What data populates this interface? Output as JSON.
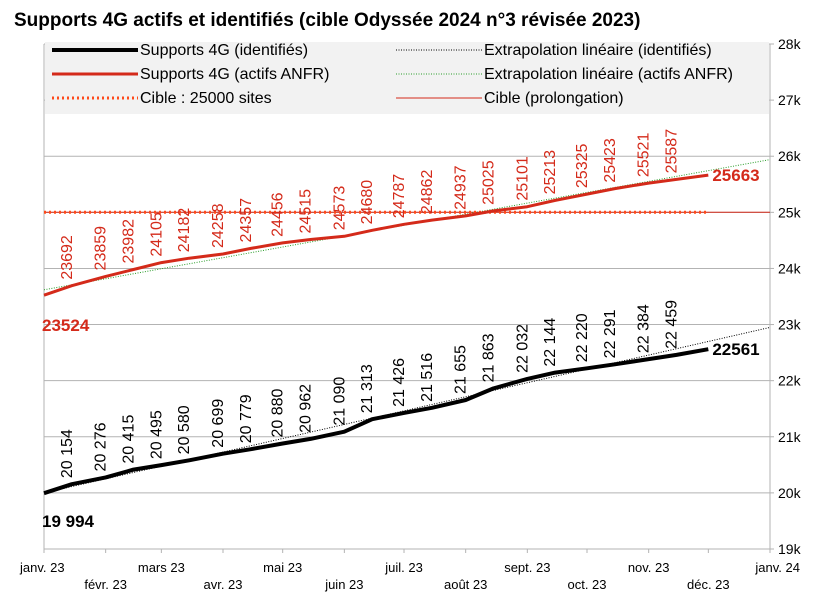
{
  "chart_data": {
    "type": "line",
    "title": "Supports 4G actifs et identifiés (cible Odyssée 2024 n°3 révisée 2023)",
    "ylim": [
      19000,
      28000
    ],
    "y_ticks": [
      {
        "value": 19000,
        "label": "19k"
      },
      {
        "value": 20000,
        "label": "20k"
      },
      {
        "value": 21000,
        "label": "21k"
      },
      {
        "value": 22000,
        "label": "22k"
      },
      {
        "value": 23000,
        "label": "23k"
      },
      {
        "value": 24000,
        "label": "24k"
      },
      {
        "value": 25000,
        "label": "25k"
      },
      {
        "value": 26000,
        "label": "26k"
      },
      {
        "value": 27000,
        "label": "27k"
      },
      {
        "value": 28000,
        "label": "28k"
      }
    ],
    "y_axis_position": "right",
    "x_range": [
      "2023-01-01",
      "2024-01-01"
    ],
    "x_ticks": [
      {
        "date": "2023-01-01",
        "label": "janv. 23"
      },
      {
        "date": "2023-02-01",
        "label": "févr. 23"
      },
      {
        "date": "2023-03-01",
        "label": "mars 23"
      },
      {
        "date": "2023-04-01",
        "label": "avr. 23"
      },
      {
        "date": "2023-05-01",
        "label": "mai 23"
      },
      {
        "date": "2023-06-01",
        "label": "juin 23"
      },
      {
        "date": "2023-07-01",
        "label": "juil. 23"
      },
      {
        "date": "2023-08-01",
        "label": "août 23"
      },
      {
        "date": "2023-09-01",
        "label": "sept. 23"
      },
      {
        "date": "2023-10-01",
        "label": "oct. 23"
      },
      {
        "date": "2023-11-01",
        "label": "nov. 23"
      },
      {
        "date": "2023-12-01",
        "label": "déc. 23"
      },
      {
        "date": "2024-01-01",
        "label": "janv. 24"
      }
    ],
    "grid": {
      "horizontal": true,
      "vertical": false
    },
    "legend_position": "top",
    "series": [
      {
        "name": "Supports 4G (identifiés)",
        "color": "#000000",
        "style": "solid-thick",
        "points": [
          {
            "date": "2023-01-01",
            "value": 19994,
            "label": "19 994"
          },
          {
            "date": "2023-01-15",
            "value": 20154,
            "label": "20 154"
          },
          {
            "date": "2023-02-01",
            "value": 20276,
            "label": "20 276"
          },
          {
            "date": "2023-02-15",
            "value": 20415,
            "label": "20 415"
          },
          {
            "date": "2023-03-01",
            "value": 20495,
            "label": "20 495"
          },
          {
            "date": "2023-03-15",
            "value": 20580,
            "label": "20 580"
          },
          {
            "date": "2023-04-01",
            "value": 20699,
            "label": "20 699"
          },
          {
            "date": "2023-04-15",
            "value": 20779,
            "label": "20 779"
          },
          {
            "date": "2023-05-01",
            "value": 20880,
            "label": "20 880"
          },
          {
            "date": "2023-05-15",
            "value": 20962,
            "label": "20 962"
          },
          {
            "date": "2023-06-01",
            "value": 21090,
            "label": "21 090"
          },
          {
            "date": "2023-06-15",
            "value": 21313,
            "label": "21 313"
          },
          {
            "date": "2023-07-01",
            "value": 21426,
            "label": "21 426"
          },
          {
            "date": "2023-07-15",
            "value": 21516,
            "label": "21 516"
          },
          {
            "date": "2023-08-01",
            "value": 21655,
            "label": "21 655"
          },
          {
            "date": "2023-08-15",
            "value": 21863,
            "label": "21 863"
          },
          {
            "date": "2023-09-01",
            "value": 22032,
            "label": "22 032"
          },
          {
            "date": "2023-09-15",
            "value": 22144,
            "label": "22 144"
          },
          {
            "date": "2023-10-01",
            "value": 22220,
            "label": "22 220"
          },
          {
            "date": "2023-10-15",
            "value": 22291,
            "label": "22 291"
          },
          {
            "date": "2023-11-01",
            "value": 22384,
            "label": "22 384"
          },
          {
            "date": "2023-11-15",
            "value": 22459,
            "label": "22 459"
          },
          {
            "date": "2023-12-01",
            "value": 22561,
            "label": "22561"
          }
        ]
      },
      {
        "name": "Supports 4G (actifs ANFR)",
        "color": "#d42a1a",
        "style": "solid",
        "points": [
          {
            "date": "2023-01-01",
            "value": 23524,
            "label": "23524"
          },
          {
            "date": "2023-01-15",
            "value": 23692,
            "label": "23692"
          },
          {
            "date": "2023-02-01",
            "value": 23859,
            "label": "23859"
          },
          {
            "date": "2023-02-15",
            "value": 23982,
            "label": "23982"
          },
          {
            "date": "2023-03-01",
            "value": 24105,
            "label": "24105"
          },
          {
            "date": "2023-03-15",
            "value": 24182,
            "label": "24182"
          },
          {
            "date": "2023-04-01",
            "value": 24258,
            "label": "24258"
          },
          {
            "date": "2023-04-15",
            "value": 24357,
            "label": "24357"
          },
          {
            "date": "2023-05-01",
            "value": 24456,
            "label": "24456"
          },
          {
            "date": "2023-05-15",
            "value": 24515,
            "label": "24515"
          },
          {
            "date": "2023-06-01",
            "value": 24573,
            "label": "24573"
          },
          {
            "date": "2023-06-15",
            "value": 24680,
            "label": "24680"
          },
          {
            "date": "2023-07-01",
            "value": 24787,
            "label": "24787"
          },
          {
            "date": "2023-07-15",
            "value": 24862,
            "label": "24862"
          },
          {
            "date": "2023-08-01",
            "value": 24937,
            "label": "24937"
          },
          {
            "date": "2023-08-15",
            "value": 25025,
            "label": "25025"
          },
          {
            "date": "2023-09-01",
            "value": 25101,
            "label": "25101"
          },
          {
            "date": "2023-09-15",
            "value": 25213,
            "label": "25213"
          },
          {
            "date": "2023-10-01",
            "value": 25325,
            "label": "25325"
          },
          {
            "date": "2023-10-15",
            "value": 25423,
            "label": "25423"
          },
          {
            "date": "2023-11-01",
            "value": 25521,
            "label": "25521"
          },
          {
            "date": "2023-11-15",
            "value": 25587,
            "label": "25587"
          },
          {
            "date": "2023-12-01",
            "value": 25663,
            "label": "25663"
          }
        ]
      },
      {
        "name": "Cible : 25000 sites",
        "color": "#ff4a1a",
        "style": "dotted",
        "points": [
          {
            "date": "2023-01-01",
            "value": 25000
          },
          {
            "date": "2023-12-01",
            "value": 25000
          }
        ]
      },
      {
        "name": "Extrapolation linéaire (identifiés)",
        "color": "#000000",
        "style": "hairline-dotted",
        "points": [
          {
            "date": "2023-01-01",
            "value": 20000
          },
          {
            "date": "2024-01-01",
            "value": 22950
          }
        ]
      },
      {
        "name": "Extrapolation linéaire (actifs ANFR)",
        "color": "#2a9d2a",
        "style": "hairline-dotted",
        "points": [
          {
            "date": "2023-01-01",
            "value": 23620
          },
          {
            "date": "2024-01-01",
            "value": 25940
          }
        ]
      },
      {
        "name": "Cible (prolongation)",
        "color": "#d42a1a",
        "style": "hairline",
        "points": [
          {
            "date": "2023-01-01",
            "value": 25000
          },
          {
            "date": "2024-01-01",
            "value": 25000
          }
        ]
      }
    ],
    "legend": [
      {
        "label": "Supports 4G (identifiés)",
        "series": 0
      },
      {
        "label": "Extrapolation linéaire (identifiés)",
        "series": 3
      },
      {
        "label": "Supports 4G (actifs ANFR)",
        "series": 1
      },
      {
        "label": "Extrapolation linéaire (actifs ANFR)",
        "series": 4
      },
      {
        "label": "Cible : 25000 sites",
        "series": 2
      },
      {
        "label": "Cible (prolongation)",
        "series": 5
      }
    ]
  }
}
